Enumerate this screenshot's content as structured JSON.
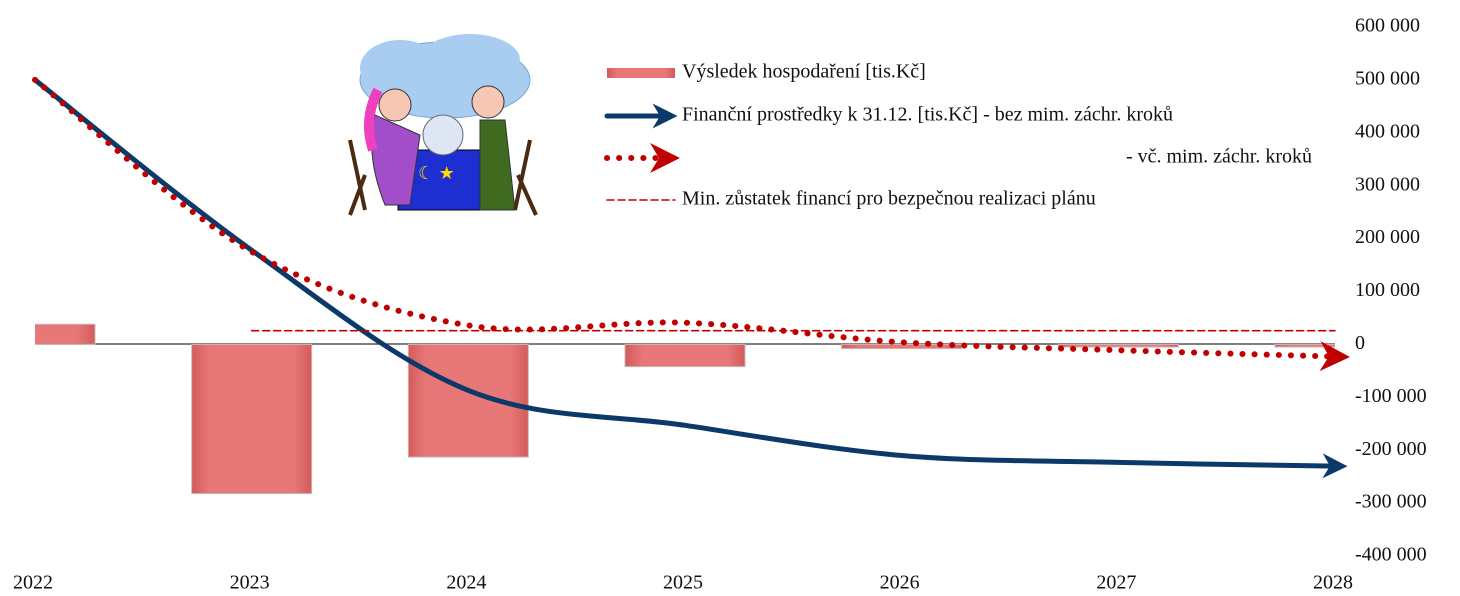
{
  "chart_data": {
    "type": "combo",
    "categories": [
      "2022",
      "2023",
      "2024",
      "2025",
      "2026",
      "2027",
      "2028"
    ],
    "series": [
      {
        "name": "Výsledek hospodaření [tis.Kč]",
        "kind": "bar",
        "color": "#e06c6c",
        "values": [
          38000,
          -282000,
          -213000,
          -42000,
          -8000,
          -5000,
          -5000
        ]
      },
      {
        "name": "Finanční prostředky k 31.12. [tis.Kč] - bez mim. záchr. kroků",
        "kind": "line",
        "style": "solid",
        "color": "#0b3a6a",
        "values": [
          500000,
          178000,
          -87000,
          -153000,
          -210000,
          -223000,
          -230000
        ]
      },
      {
        "name": "- vč. mim. záchr. kroků",
        "kind": "line",
        "style": "dotted",
        "color": "#c00000",
        "values": [
          500000,
          175000,
          36000,
          41000,
          4000,
          -11000,
          -23000
        ]
      },
      {
        "name": "Min. zůstatek financí pro bezpečnou realizaci plánu",
        "kind": "line",
        "style": "dashed",
        "color": "#c00000",
        "values": [
          null,
          26000,
          26000,
          26000,
          26000,
          26000,
          26000
        ]
      }
    ],
    "ylim": [
      -400000,
      600000
    ],
    "yticks": [
      {
        "value": 600000,
        "label": "600 000"
      },
      {
        "value": 500000,
        "label": "500 000"
      },
      {
        "value": 400000,
        "label": "400 000"
      },
      {
        "value": 300000,
        "label": "300 000"
      },
      {
        "value": 200000,
        "label": "200 000"
      },
      {
        "value": 100000,
        "label": "100 000"
      },
      0,
      {
        "value": -100000,
        "label": "-100 000"
      },
      {
        "value": -200000,
        "label": "-200 000"
      },
      {
        "value": -300000,
        "label": "-300 000"
      },
      {
        "value": -400000,
        "label": "-400 000"
      }
    ],
    "grid": false
  }
}
